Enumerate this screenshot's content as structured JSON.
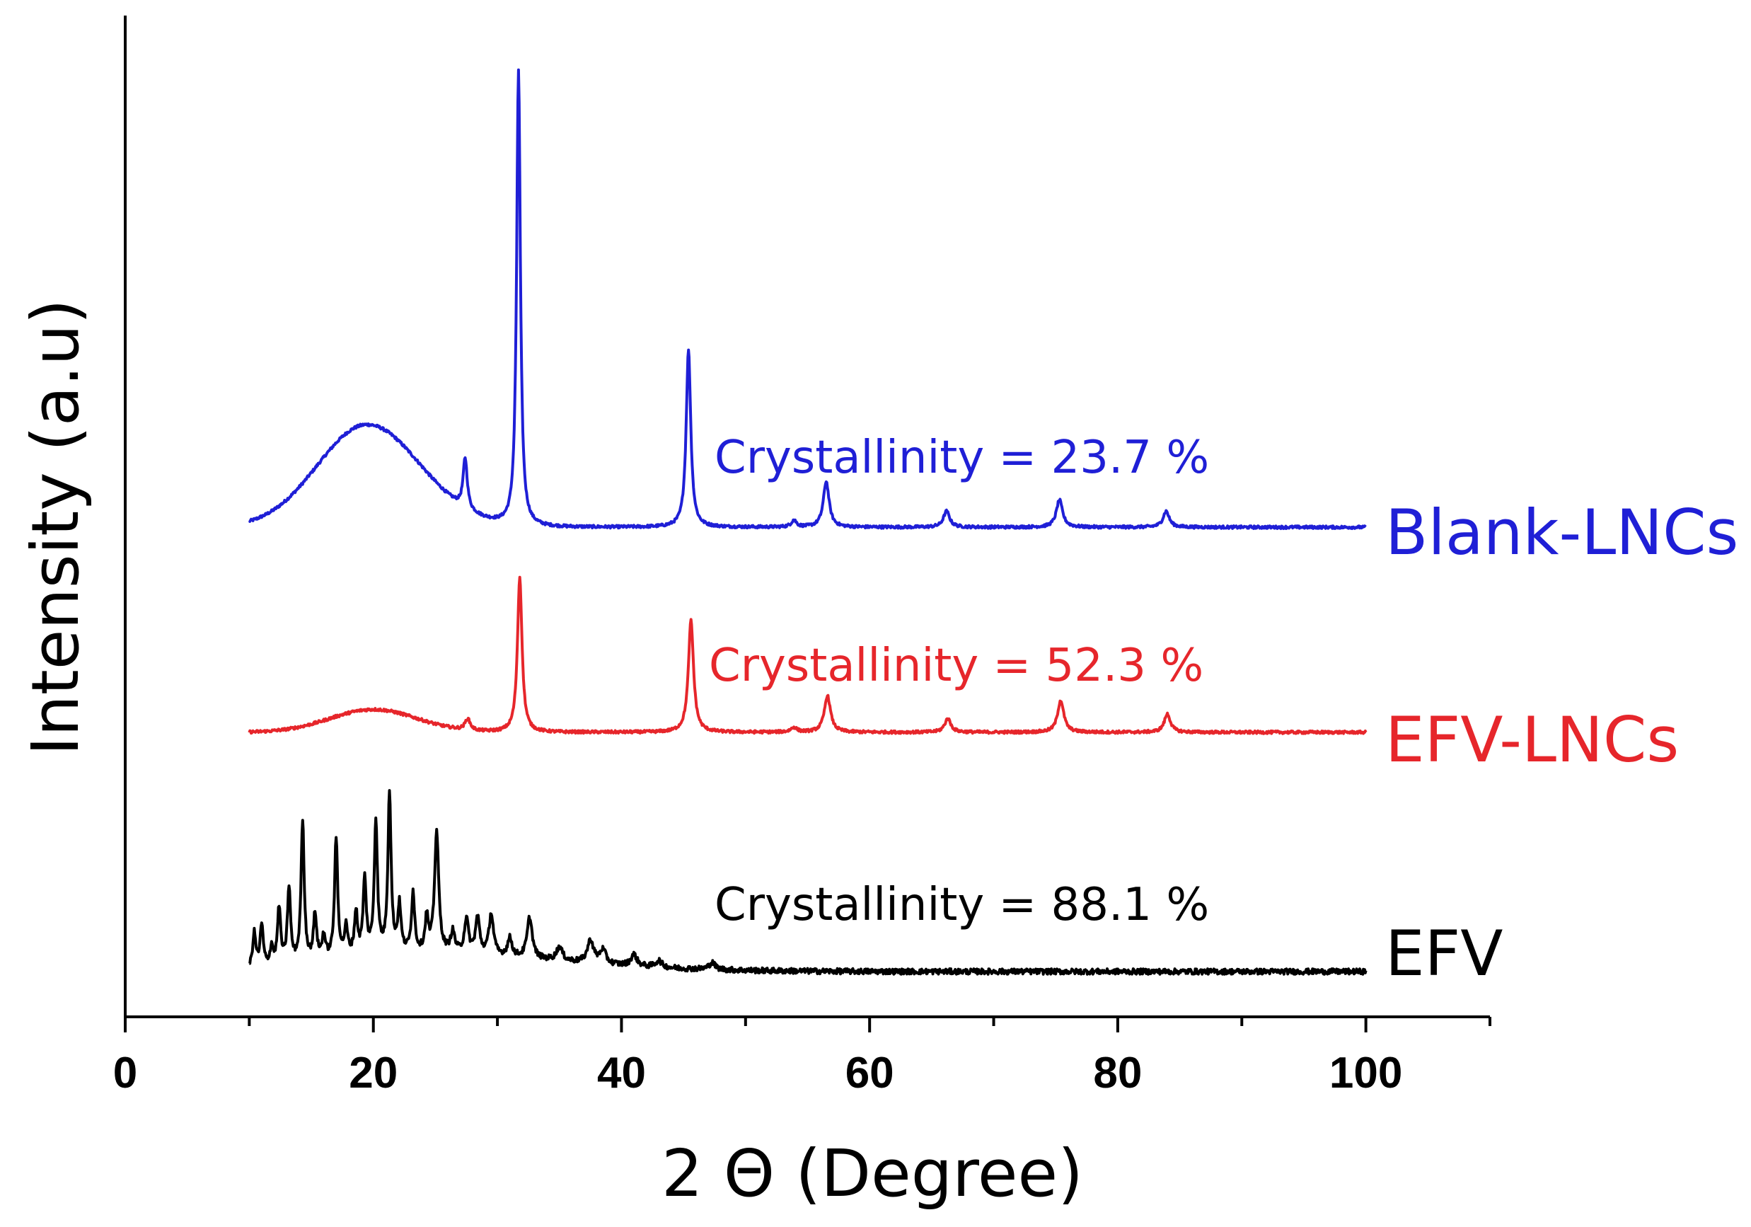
{
  "chart_data": {
    "type": "line",
    "title": "",
    "xlabel": "2 Θ (Degree)",
    "ylabel": "Intensity (a.u)",
    "xlim": [
      0,
      110
    ],
    "xticks_major": [
      0,
      20,
      40,
      60,
      80,
      100
    ],
    "xticks_minor": [
      10,
      30,
      50,
      70,
      90,
      110
    ],
    "y_ticks_shown": false,
    "grid": false,
    "legend": "none",
    "series": [
      {
        "name": "Blank-LNCs",
        "label": "Blank-LNCs",
        "color": "#1f1fd6",
        "offset": 1.95,
        "annotation": "Crystallinity = 23.7 %",
        "x_range": [
          10,
          100
        ],
        "baseline_noise": 0.006,
        "broad_peaks": [
          {
            "center": 19.5,
            "height": 0.45,
            "width_left": 4.0,
            "width_right": 4.3
          }
        ],
        "sharp_peaks": [
          {
            "center": 27.4,
            "height": 0.22,
            "width": 0.2
          },
          {
            "center": 31.7,
            "height": 2.0,
            "width": 0.18
          },
          {
            "center": 45.4,
            "height": 0.78,
            "width": 0.22
          },
          {
            "center": 53.9,
            "height": 0.03,
            "width": 0.25
          },
          {
            "center": 56.5,
            "height": 0.2,
            "width": 0.28
          },
          {
            "center": 66.2,
            "height": 0.07,
            "width": 0.3
          },
          {
            "center": 75.3,
            "height": 0.12,
            "width": 0.3
          },
          {
            "center": 83.9,
            "height": 0.07,
            "width": 0.3
          }
        ]
      },
      {
        "name": "EFV-LNCs",
        "label": "EFV-LNCs",
        "color": "#e6262b",
        "offset": 1.05,
        "annotation": "Crystallinity = 52.3 %",
        "x_range": [
          10,
          100
        ],
        "baseline_noise": 0.006,
        "broad_peaks": [
          {
            "center": 20.0,
            "height": 0.1,
            "width_left": 3.5,
            "width_right": 3.5
          }
        ],
        "sharp_peaks": [
          {
            "center": 27.6,
            "height": 0.05,
            "width": 0.25
          },
          {
            "center": 31.8,
            "height": 0.68,
            "width": 0.22
          },
          {
            "center": 45.6,
            "height": 0.49,
            "width": 0.25
          },
          {
            "center": 53.9,
            "height": 0.02,
            "width": 0.3
          },
          {
            "center": 56.6,
            "height": 0.16,
            "width": 0.3
          },
          {
            "center": 66.3,
            "height": 0.06,
            "width": 0.3
          },
          {
            "center": 75.4,
            "height": 0.14,
            "width": 0.3
          },
          {
            "center": 84.0,
            "height": 0.08,
            "width": 0.3
          }
        ]
      },
      {
        "name": "EFV",
        "label": "EFV",
        "color": "#000000",
        "offset": 0.0,
        "annotation": "Crystallinity = 88.1 %",
        "x_range": [
          10,
          100
        ],
        "baseline_noise": 0.012,
        "broad_peaks": [
          {
            "center": 22.0,
            "height": 0.08,
            "width_left": 6.0,
            "width_right": 12.0
          }
        ],
        "sharp_peaks": [
          {
            "center": 10.4,
            "height": 0.15,
            "width": 0.15
          },
          {
            "center": 11.0,
            "height": 0.18,
            "width": 0.15
          },
          {
            "center": 11.8,
            "height": 0.08,
            "width": 0.15
          },
          {
            "center": 12.4,
            "height": 0.25,
            "width": 0.15
          },
          {
            "center": 13.2,
            "height": 0.33,
            "width": 0.15
          },
          {
            "center": 14.3,
            "height": 0.62,
            "width": 0.15
          },
          {
            "center": 15.3,
            "height": 0.2,
            "width": 0.15
          },
          {
            "center": 16.0,
            "height": 0.1,
            "width": 0.15
          },
          {
            "center": 17.0,
            "height": 0.52,
            "width": 0.15
          },
          {
            "center": 17.8,
            "height": 0.12,
            "width": 0.15
          },
          {
            "center": 18.6,
            "height": 0.18,
            "width": 0.15
          },
          {
            "center": 19.3,
            "height": 0.32,
            "width": 0.15
          },
          {
            "center": 20.2,
            "height": 0.58,
            "width": 0.15
          },
          {
            "center": 21.3,
            "height": 0.7,
            "width": 0.15
          },
          {
            "center": 22.1,
            "height": 0.2,
            "width": 0.15
          },
          {
            "center": 23.2,
            "height": 0.26,
            "width": 0.15
          },
          {
            "center": 24.3,
            "height": 0.15,
            "width": 0.15
          },
          {
            "center": 25.1,
            "height": 0.53,
            "width": 0.2
          },
          {
            "center": 26.4,
            "height": 0.09,
            "width": 0.2
          },
          {
            "center": 27.5,
            "height": 0.15,
            "width": 0.2
          },
          {
            "center": 28.4,
            "height": 0.16,
            "width": 0.2
          },
          {
            "center": 29.5,
            "height": 0.18,
            "width": 0.22
          },
          {
            "center": 31.0,
            "height": 0.08,
            "width": 0.22
          },
          {
            "center": 32.6,
            "height": 0.18,
            "width": 0.25
          },
          {
            "center": 35.0,
            "height": 0.06,
            "width": 0.3
          },
          {
            "center": 37.5,
            "height": 0.1,
            "width": 0.3
          },
          {
            "center": 38.5,
            "height": 0.06,
            "width": 0.3
          },
          {
            "center": 41.0,
            "height": 0.05,
            "width": 0.3
          },
          {
            "center": 43.0,
            "height": 0.03,
            "width": 0.3
          },
          {
            "center": 47.3,
            "height": 0.03,
            "width": 0.3
          }
        ]
      }
    ]
  }
}
